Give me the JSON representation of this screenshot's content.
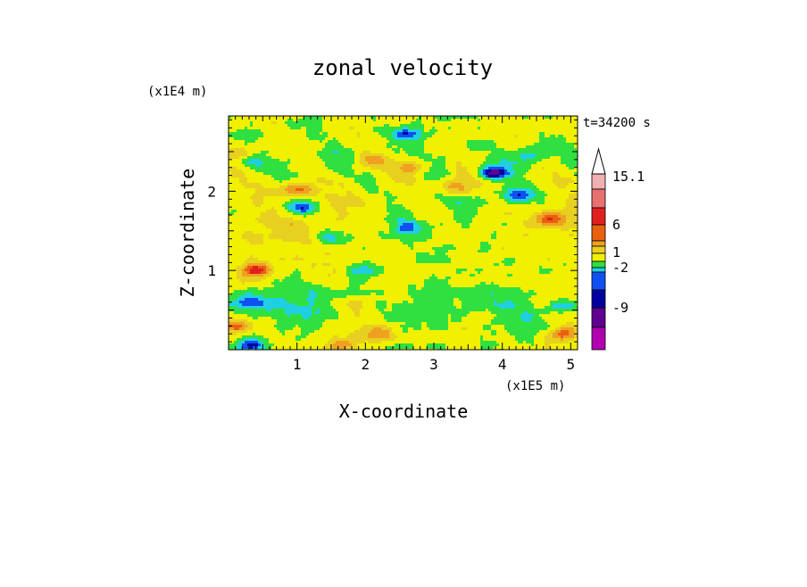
{
  "chart_data": {
    "type": "heatmap",
    "title": "zonal velocity",
    "xlabel": "X-coordinate",
    "ylabel": "Z-coordinate",
    "x_unit": "(x1E5 m)",
    "y_unit": "(x1E4 m)",
    "time_label": "t=34200 s",
    "xlim": [
      0,
      5.1
    ],
    "ylim": [
      0,
      2.95
    ],
    "x_ticks": [
      "1",
      "2",
      "3",
      "4",
      "5"
    ],
    "x_tick_values": [
      1,
      2,
      3,
      4,
      5
    ],
    "y_ticks": [
      "1",
      "2"
    ],
    "y_tick_values": [
      1,
      2
    ],
    "colorbar": {
      "labels": [
        "15.1",
        "6",
        "1",
        "-2",
        "-9"
      ],
      "colors": [
        "#f0b0b0",
        "#e87070",
        "#e02020",
        "#e86010",
        "#f0a020",
        "#e8d020",
        "#f0f000",
        "#30e040",
        "#20d0e0",
        "#1050f0",
        "#0000a0",
        "#600090",
        "#b000b0",
        "#f000b0"
      ],
      "extend_max": true
    },
    "features": [
      {
        "x": 2.6,
        "z": 2.72,
        "v": -3.6
      },
      {
        "x": 1.05,
        "z": 1.78,
        "v": -3.5
      },
      {
        "x": 2.6,
        "z": 1.56,
        "v": -3.4
      },
      {
        "x": 3.85,
        "z": 2.23,
        "v": -5.2
      },
      {
        "x": 4.25,
        "z": 1.95,
        "v": -3.0
      },
      {
        "x": 4.4,
        "z": 2.45,
        "v": -3.0
      },
      {
        "x": 0.3,
        "z": 2.4,
        "v": -2.8
      },
      {
        "x": 1.45,
        "z": 1.42,
        "v": -2.6
      },
      {
        "x": 4.9,
        "z": 0.55,
        "v": -3.0
      },
      {
        "x": 0.35,
        "z": 0.05,
        "v": -3.5
      },
      {
        "x": 1.0,
        "z": 2.02,
        "v": 3.2
      },
      {
        "x": 2.7,
        "z": 2.3,
        "v": 3.1
      },
      {
        "x": 4.7,
        "z": 1.65,
        "v": 3.6
      },
      {
        "x": 0.4,
        "z": 1.0,
        "v": 4.2
      },
      {
        "x": 0.1,
        "z": 0.3,
        "v": 3.8
      },
      {
        "x": 4.9,
        "z": 0.2,
        "v": 3.2
      },
      {
        "x": 0.25,
        "z": 2.45,
        "v": 3.0
      },
      {
        "x": 3.3,
        "z": 2.05,
        "v": 2.8
      },
      {
        "x": 2.1,
        "z": 2.4,
        "v": 2.6
      },
      {
        "x": 0.3,
        "z": 0.6,
        "v": -2.8
      },
      {
        "x": 2.2,
        "z": 0.2,
        "v": 2.5
      },
      {
        "x": 1.65,
        "z": 0.05,
        "v": 2.4
      },
      {
        "x": 1.9,
        "z": 1.0,
        "v": -2.3
      }
    ]
  }
}
